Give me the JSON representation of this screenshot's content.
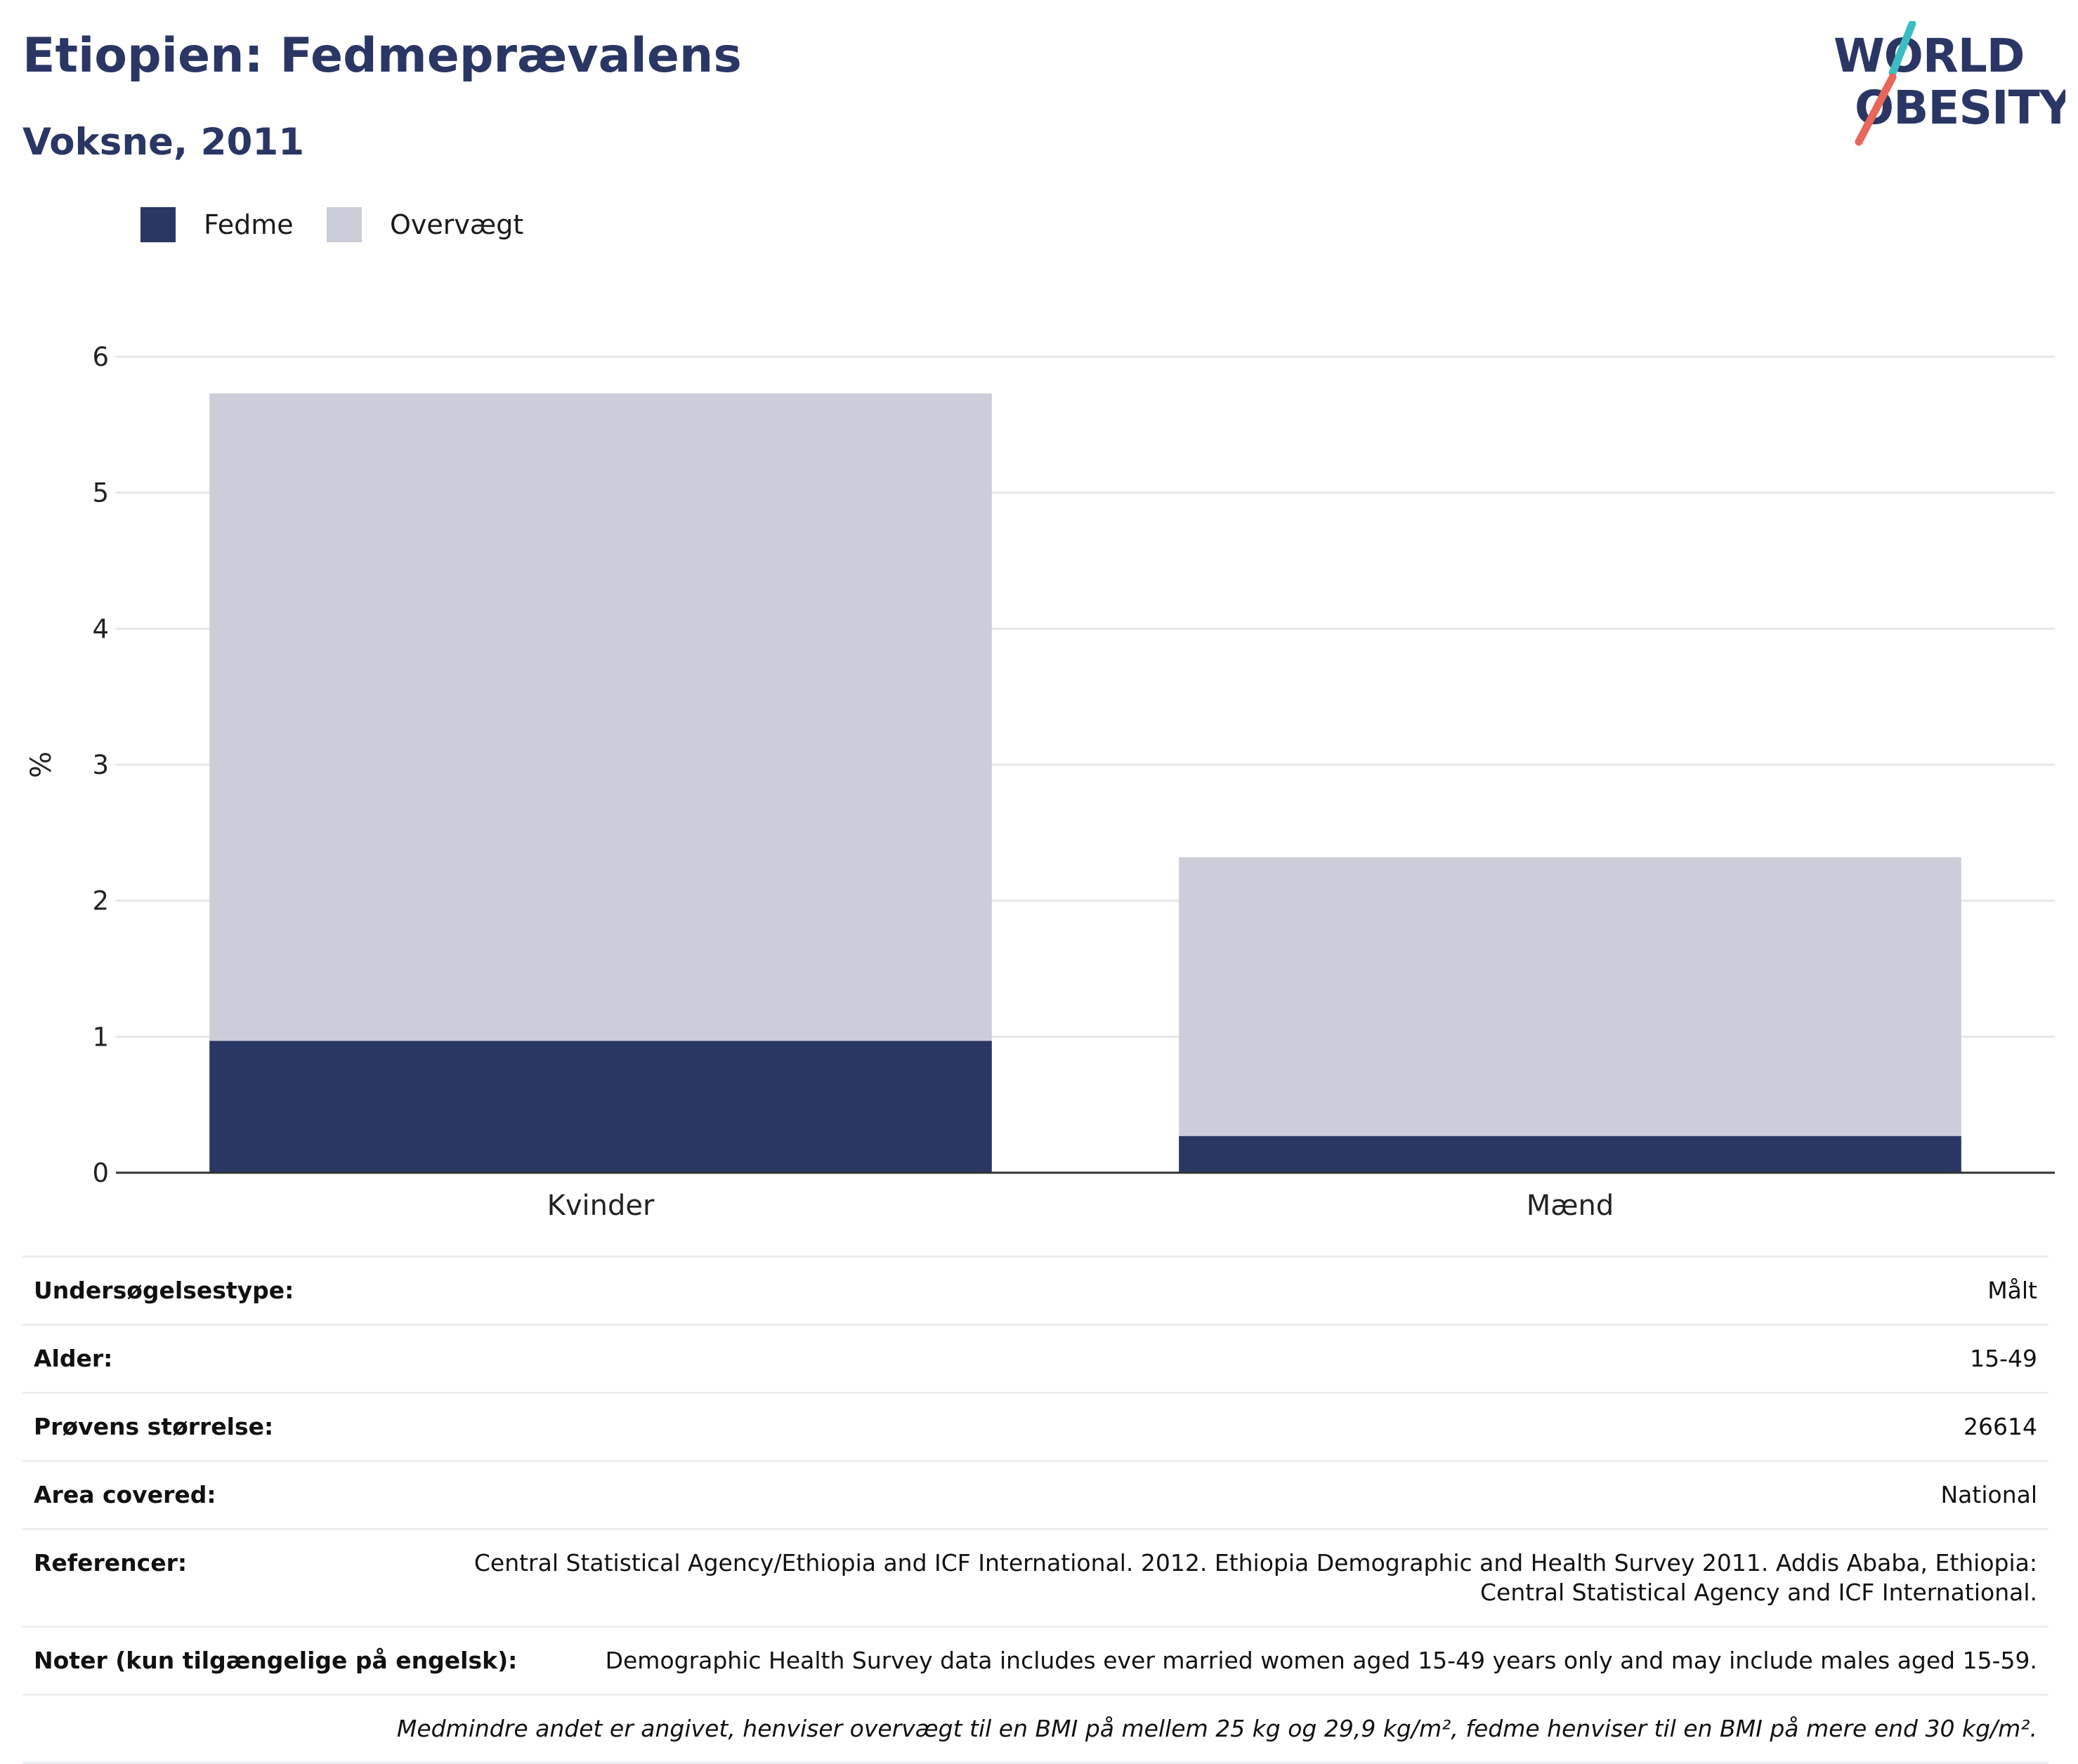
{
  "header": {
    "title": "Etiopien: Fedmeprævalens",
    "subtitle": "Voksne, 2011"
  },
  "logo": {
    "line1": "WORLD",
    "line2": "OBESITY",
    "colors": {
      "text": "#2a3664",
      "accent_teal": "#3bbdc1",
      "accent_red": "#e8675b"
    }
  },
  "colors": {
    "fedme": "#2a3664",
    "overvaegt": "#cbcdd8",
    "grid": "#e6e6e6",
    "axis": "#333333"
  },
  "chart_data": {
    "type": "bar",
    "stacked": true,
    "categories": [
      "Kvinder",
      "Mænd"
    ],
    "series": [
      {
        "name": "Fedme",
        "values": [
          0.97,
          0.27
        ]
      },
      {
        "name": "Overvægt",
        "values": [
          4.76,
          2.05
        ]
      }
    ],
    "ylabel": "%",
    "xlabel": "",
    "ylim": [
      0,
      6
    ],
    "yticks": [
      0,
      1,
      2,
      3,
      4,
      5,
      6
    ],
    "grid": true,
    "legend": "top-left"
  },
  "info": {
    "rows": [
      {
        "label": "Undersøgelsestype:",
        "value": "Målt"
      },
      {
        "label": "Alder:",
        "value": "15-49"
      },
      {
        "label": "Prøvens størrelse:",
        "value": "26614"
      },
      {
        "label": "Area covered:",
        "value": "National"
      },
      {
        "label": "Referencer:",
        "value": "Central Statistical Agency/Ethiopia and ICF International. 2012. Ethiopia Demographic and Health Survey 2011. Addis Ababa, Ethiopia: Central Statistical Agency and ICF International."
      },
      {
        "label": "Noter (kun tilgængelige på engelsk):",
        "value": "Demographic Health Survey data includes ever married women aged 15-49 years only and may include males aged 15-59."
      }
    ],
    "footnote": "Medmindre andet er angivet, henviser overvægt til en BMI på mellem 25 kg og 29,9 kg/m², fedme henviser til en BMI på mere end 30 kg/m²."
  }
}
